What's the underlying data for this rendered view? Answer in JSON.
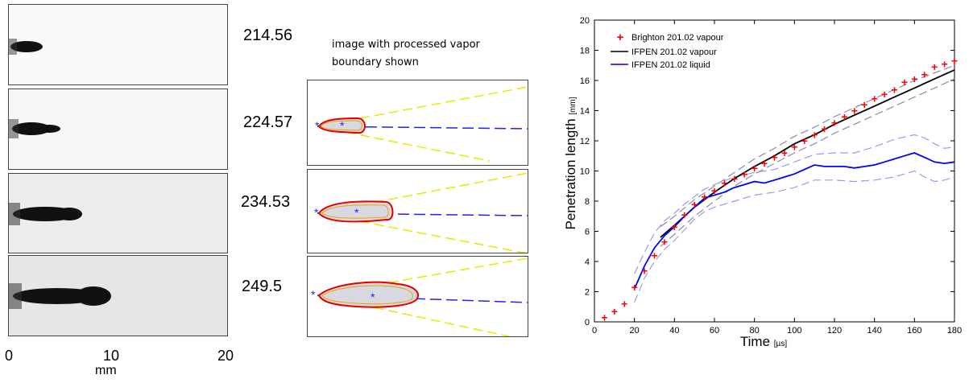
{
  "left_panel": {
    "times": [
      "214.56",
      "224.57",
      "234.53",
      "249.5"
    ],
    "axis_ticks": [
      "0",
      "10",
      "20"
    ],
    "axis_unit": "mm"
  },
  "middle_panel": {
    "caption_line1": "image with processed vapor",
    "caption_line2": "boundary shown"
  },
  "chart_data": {
    "type": "line",
    "xlabel": "Time",
    "xunit": "[µs]",
    "ylabel": "Penetration length",
    "yunit": "[mm]",
    "xlim": [
      0,
      180
    ],
    "ylim": [
      0,
      20
    ],
    "xticks": [
      0,
      20,
      40,
      60,
      80,
      100,
      120,
      140,
      160,
      180
    ],
    "yticks": [
      0,
      2,
      4,
      6,
      8,
      10,
      12,
      14,
      16,
      18,
      20
    ],
    "legend_position": "top-left",
    "series": [
      {
        "name": "Brighton 201.02 vapour",
        "style": "markers",
        "marker": "+",
        "color": "#ff0000",
        "x": [
          5,
          10,
          15,
          20,
          25,
          30,
          35,
          40,
          45,
          50,
          55,
          60,
          65,
          70,
          75,
          80,
          85,
          90,
          95,
          100,
          105,
          110,
          115,
          120,
          125,
          130,
          135,
          140,
          145,
          150,
          155,
          160,
          165,
          170,
          175,
          180
        ],
        "y": [
          0.3,
          0.7,
          1.2,
          2.3,
          3.4,
          4.4,
          5.3,
          6.3,
          7.1,
          7.8,
          8.3,
          8.7,
          9.2,
          9.5,
          9.8,
          10.2,
          10.5,
          10.9,
          11.2,
          11.6,
          12.0,
          12.4,
          12.8,
          13.2,
          13.6,
          14.0,
          14.4,
          14.8,
          15.1,
          15.4,
          15.9,
          16.1,
          16.4,
          16.9,
          17.1,
          17.3
        ]
      },
      {
        "name": "IFPEN 201.02 vapour",
        "style": "line",
        "color": "#000000",
        "x": [
          33,
          40,
          50,
          60,
          70,
          80,
          90,
          100,
          110,
          120,
          130,
          140,
          150,
          160,
          170,
          180
        ],
        "y": [
          5.6,
          6.4,
          7.6,
          8.6,
          9.5,
          10.3,
          11.0,
          11.8,
          12.4,
          13.1,
          13.7,
          14.3,
          14.9,
          15.5,
          16.1,
          16.7
        ]
      },
      {
        "name": "IFPEN 201.02 liquid",
        "style": "line",
        "color": "#0000ff",
        "x": [
          20,
          25,
          30,
          35,
          40,
          45,
          50,
          55,
          60,
          65,
          70,
          75,
          80,
          85,
          90,
          95,
          100,
          105,
          110,
          115,
          120,
          125,
          130,
          135,
          140,
          145,
          150,
          155,
          160,
          165,
          170,
          175,
          180
        ],
        "y": [
          2.2,
          3.7,
          4.9,
          5.7,
          6.3,
          7.0,
          7.6,
          8.2,
          8.4,
          8.6,
          8.9,
          9.1,
          9.3,
          9.2,
          9.4,
          9.6,
          9.8,
          10.1,
          10.4,
          10.3,
          10.3,
          10.3,
          10.2,
          10.3,
          10.4,
          10.6,
          10.8,
          11.0,
          11.2,
          10.9,
          10.6,
          10.5,
          10.6
        ]
      }
    ],
    "bands": [
      {
        "color": "#8a8aaa",
        "of": "IFPEN 201.02 vapour",
        "side": "upper",
        "x": [
          33,
          40,
          50,
          60,
          70,
          80,
          90,
          100,
          110,
          120,
          130,
          140,
          150,
          160,
          170,
          180
        ],
        "y": [
          6.3,
          7.0,
          8.1,
          9.0,
          9.9,
          10.8,
          11.5,
          12.3,
          12.9,
          13.6,
          14.2,
          14.8,
          15.4,
          16.0,
          16.5,
          17.0
        ]
      },
      {
        "color": "#8a8aaa",
        "of": "IFPEN 201.02 vapour",
        "side": "lower",
        "x": [
          33,
          40,
          50,
          60,
          70,
          80,
          90,
          100,
          110,
          120,
          130,
          140,
          150,
          160,
          170,
          180
        ],
        "y": [
          5.0,
          5.8,
          7.0,
          8.0,
          9.0,
          9.8,
          10.5,
          11.2,
          11.8,
          12.5,
          13.1,
          13.7,
          14.3,
          14.9,
          15.5,
          16.1
        ]
      },
      {
        "color": "#9a9af0",
        "of": "IFPEN 201.02 liquid",
        "side": "upper",
        "x": [
          20,
          25,
          30,
          35,
          40,
          45,
          50,
          55,
          60,
          70,
          80,
          90,
          100,
          110,
          120,
          130,
          140,
          150,
          160,
          165,
          170,
          175,
          180
        ],
        "y": [
          3.2,
          4.6,
          5.9,
          6.7,
          7.2,
          7.8,
          8.3,
          8.8,
          9.1,
          9.6,
          9.9,
          10.1,
          10.6,
          11.1,
          11.2,
          11.2,
          11.6,
          12.1,
          12.4,
          12.2,
          11.8,
          11.5,
          11.6
        ]
      },
      {
        "color": "#9a9af0",
        "of": "IFPEN 201.02 liquid",
        "side": "lower",
        "x": [
          20,
          25,
          30,
          35,
          40,
          45,
          50,
          55,
          60,
          70,
          80,
          90,
          100,
          110,
          120,
          130,
          140,
          150,
          160,
          165,
          170,
          175,
          180
        ],
        "y": [
          1.3,
          2.9,
          4.0,
          4.8,
          5.4,
          6.1,
          6.8,
          7.3,
          7.6,
          8.0,
          8.4,
          8.6,
          8.9,
          9.4,
          9.4,
          9.3,
          9.4,
          9.6,
          10.0,
          9.6,
          9.3,
          9.4,
          9.6
        ]
      }
    ]
  }
}
